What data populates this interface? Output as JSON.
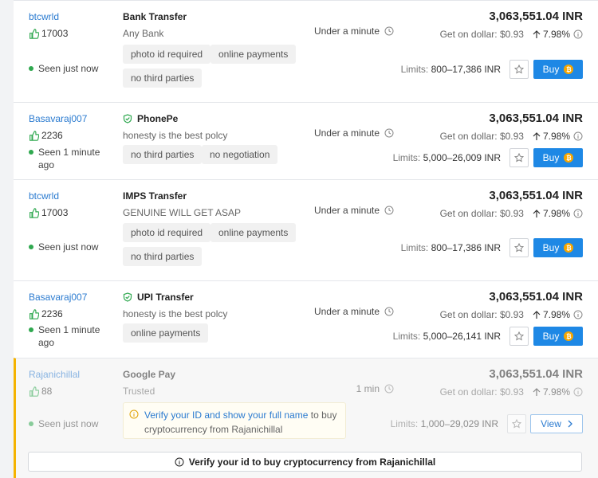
{
  "colors": {
    "accent": "#1e88e5",
    "link": "#2b7bd0",
    "online": "#2fa84f",
    "highlight": "#f5b300"
  },
  "offers": [
    {
      "user": "btcwrld",
      "likes": "17003",
      "seen": "Seen just now",
      "method": "Bank Transfer",
      "method_icon": "none",
      "sub": "Any Bank",
      "tags": [
        "photo id required",
        "online payments",
        "no third parties"
      ],
      "time": "Under a minute",
      "price": "3,063,551.04 INR",
      "dollar": "Get on dollar: $0.93",
      "pct": "7.98%",
      "limits_label": "Limits:",
      "limits": "800–17,386 INR",
      "button": "Buy"
    },
    {
      "user": "Basavaraj007",
      "likes": "2236",
      "seen": "Seen 1 minute ago",
      "method": "PhonePe",
      "method_icon": "shield-check-icon",
      "sub": "honesty is the best polcy",
      "tags": [
        "no third parties",
        "no negotiation"
      ],
      "time": "Under a minute",
      "price": "3,063,551.04 INR",
      "dollar": "Get on dollar: $0.93",
      "pct": "7.98%",
      "limits_label": "Limits:",
      "limits": "5,000–26,009 INR",
      "button": "Buy"
    },
    {
      "user": "btcwrld",
      "likes": "17003",
      "seen": "Seen just now",
      "method": "IMPS Transfer",
      "method_icon": "none",
      "sub": "GENUINE WILL GET ASAP",
      "tags": [
        "photo id required",
        "online payments",
        "no third parties"
      ],
      "time": "Under a minute",
      "price": "3,063,551.04 INR",
      "dollar": "Get on dollar: $0.93",
      "pct": "7.98%",
      "limits_label": "Limits:",
      "limits": "800–17,386 INR",
      "button": "Buy"
    },
    {
      "user": "Basavaraj007",
      "likes": "2236",
      "seen": "Seen 1 minute ago",
      "method": "UPI Transfer",
      "method_icon": "shield-check-icon",
      "sub": "honesty is the best polcy",
      "tags": [
        "online payments"
      ],
      "time": "Under a minute",
      "price": "3,063,551.04 INR",
      "dollar": "Get on dollar: $0.93",
      "pct": "7.98%",
      "limits_label": "Limits:",
      "limits": "5,000–26,141 INR",
      "button": "Buy"
    },
    {
      "user": "Rajanichillal",
      "likes": "88",
      "seen": "Seen just now",
      "method": "Google Pay",
      "method_icon": "none",
      "sub": "Trusted",
      "tags": [],
      "time": "1 min",
      "price": "3,063,551.04 INR",
      "dollar": "Get on dollar: $0.93",
      "pct": "7.98%",
      "limits_label": "Limits:",
      "limits": "1,000–29,029 INR",
      "button": "View",
      "verify_link": "Verify your ID and show your full name",
      "verify_rest": " to buy cryptocurrency from Rajanichillal",
      "verify_banner": "Verify your id to buy cryptocurrency from Rajanichillal"
    }
  ]
}
